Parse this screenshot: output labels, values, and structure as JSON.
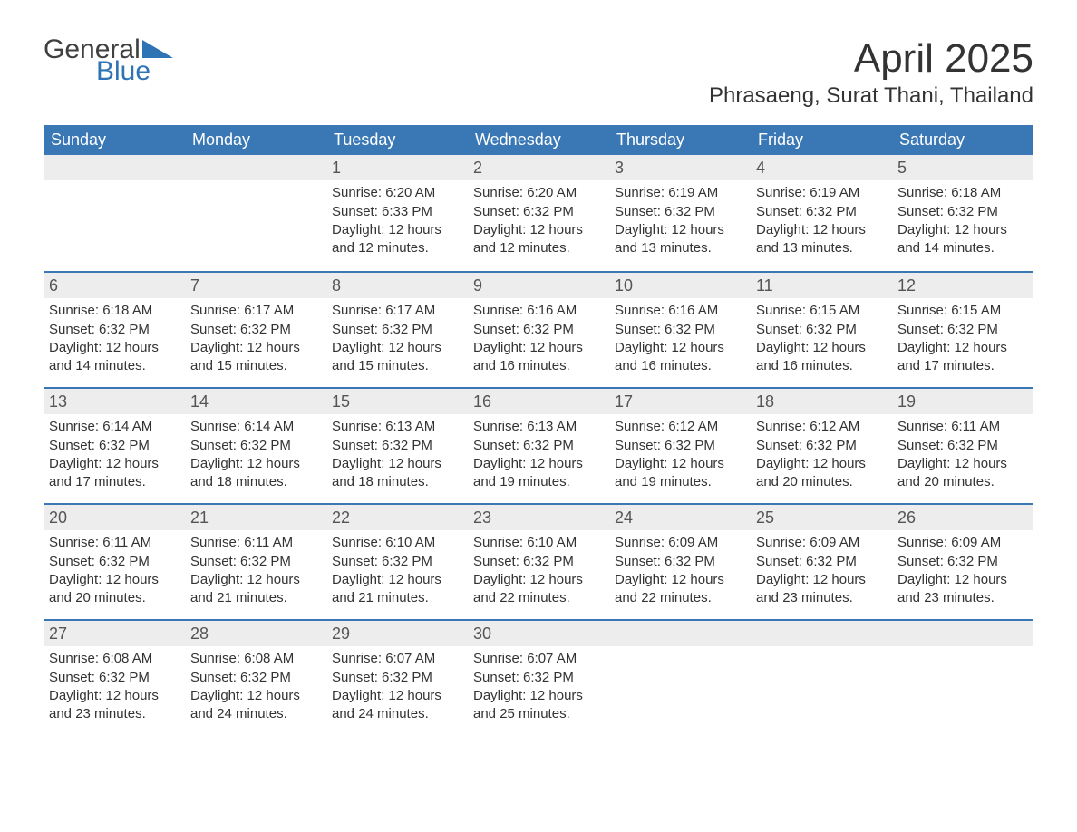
{
  "logo": {
    "word1": "General",
    "word2": "Blue",
    "tri_color": "#2e74b5"
  },
  "title": "April 2025",
  "location": "Phrasaeng, Surat Thani, Thailand",
  "colors": {
    "header_bg": "#3a78b5",
    "header_text": "#ffffff",
    "strip_bg": "#ededed",
    "week_border": "#3a78b5",
    "body_text": "#333333",
    "logo_blue": "#2e74b5"
  },
  "weekdays": [
    "Sunday",
    "Monday",
    "Tuesday",
    "Wednesday",
    "Thursday",
    "Friday",
    "Saturday"
  ],
  "weeks": [
    [
      {
        "empty": true
      },
      {
        "empty": true
      },
      {
        "day": "1",
        "sunrise": "Sunrise: 6:20 AM",
        "sunset": "Sunset: 6:33 PM",
        "dl1": "Daylight: 12 hours",
        "dl2": "and 12 minutes."
      },
      {
        "day": "2",
        "sunrise": "Sunrise: 6:20 AM",
        "sunset": "Sunset: 6:32 PM",
        "dl1": "Daylight: 12 hours",
        "dl2": "and 12 minutes."
      },
      {
        "day": "3",
        "sunrise": "Sunrise: 6:19 AM",
        "sunset": "Sunset: 6:32 PM",
        "dl1": "Daylight: 12 hours",
        "dl2": "and 13 minutes."
      },
      {
        "day": "4",
        "sunrise": "Sunrise: 6:19 AM",
        "sunset": "Sunset: 6:32 PM",
        "dl1": "Daylight: 12 hours",
        "dl2": "and 13 minutes."
      },
      {
        "day": "5",
        "sunrise": "Sunrise: 6:18 AM",
        "sunset": "Sunset: 6:32 PM",
        "dl1": "Daylight: 12 hours",
        "dl2": "and 14 minutes."
      }
    ],
    [
      {
        "day": "6",
        "sunrise": "Sunrise: 6:18 AM",
        "sunset": "Sunset: 6:32 PM",
        "dl1": "Daylight: 12 hours",
        "dl2": "and 14 minutes."
      },
      {
        "day": "7",
        "sunrise": "Sunrise: 6:17 AM",
        "sunset": "Sunset: 6:32 PM",
        "dl1": "Daylight: 12 hours",
        "dl2": "and 15 minutes."
      },
      {
        "day": "8",
        "sunrise": "Sunrise: 6:17 AM",
        "sunset": "Sunset: 6:32 PM",
        "dl1": "Daylight: 12 hours",
        "dl2": "and 15 minutes."
      },
      {
        "day": "9",
        "sunrise": "Sunrise: 6:16 AM",
        "sunset": "Sunset: 6:32 PM",
        "dl1": "Daylight: 12 hours",
        "dl2": "and 16 minutes."
      },
      {
        "day": "10",
        "sunrise": "Sunrise: 6:16 AM",
        "sunset": "Sunset: 6:32 PM",
        "dl1": "Daylight: 12 hours",
        "dl2": "and 16 minutes."
      },
      {
        "day": "11",
        "sunrise": "Sunrise: 6:15 AM",
        "sunset": "Sunset: 6:32 PM",
        "dl1": "Daylight: 12 hours",
        "dl2": "and 16 minutes."
      },
      {
        "day": "12",
        "sunrise": "Sunrise: 6:15 AM",
        "sunset": "Sunset: 6:32 PM",
        "dl1": "Daylight: 12 hours",
        "dl2": "and 17 minutes."
      }
    ],
    [
      {
        "day": "13",
        "sunrise": "Sunrise: 6:14 AM",
        "sunset": "Sunset: 6:32 PM",
        "dl1": "Daylight: 12 hours",
        "dl2": "and 17 minutes."
      },
      {
        "day": "14",
        "sunrise": "Sunrise: 6:14 AM",
        "sunset": "Sunset: 6:32 PM",
        "dl1": "Daylight: 12 hours",
        "dl2": "and 18 minutes."
      },
      {
        "day": "15",
        "sunrise": "Sunrise: 6:13 AM",
        "sunset": "Sunset: 6:32 PM",
        "dl1": "Daylight: 12 hours",
        "dl2": "and 18 minutes."
      },
      {
        "day": "16",
        "sunrise": "Sunrise: 6:13 AM",
        "sunset": "Sunset: 6:32 PM",
        "dl1": "Daylight: 12 hours",
        "dl2": "and 19 minutes."
      },
      {
        "day": "17",
        "sunrise": "Sunrise: 6:12 AM",
        "sunset": "Sunset: 6:32 PM",
        "dl1": "Daylight: 12 hours",
        "dl2": "and 19 minutes."
      },
      {
        "day": "18",
        "sunrise": "Sunrise: 6:12 AM",
        "sunset": "Sunset: 6:32 PM",
        "dl1": "Daylight: 12 hours",
        "dl2": "and 20 minutes."
      },
      {
        "day": "19",
        "sunrise": "Sunrise: 6:11 AM",
        "sunset": "Sunset: 6:32 PM",
        "dl1": "Daylight: 12 hours",
        "dl2": "and 20 minutes."
      }
    ],
    [
      {
        "day": "20",
        "sunrise": "Sunrise: 6:11 AM",
        "sunset": "Sunset: 6:32 PM",
        "dl1": "Daylight: 12 hours",
        "dl2": "and 20 minutes."
      },
      {
        "day": "21",
        "sunrise": "Sunrise: 6:11 AM",
        "sunset": "Sunset: 6:32 PM",
        "dl1": "Daylight: 12 hours",
        "dl2": "and 21 minutes."
      },
      {
        "day": "22",
        "sunrise": "Sunrise: 6:10 AM",
        "sunset": "Sunset: 6:32 PM",
        "dl1": "Daylight: 12 hours",
        "dl2": "and 21 minutes."
      },
      {
        "day": "23",
        "sunrise": "Sunrise: 6:10 AM",
        "sunset": "Sunset: 6:32 PM",
        "dl1": "Daylight: 12 hours",
        "dl2": "and 22 minutes."
      },
      {
        "day": "24",
        "sunrise": "Sunrise: 6:09 AM",
        "sunset": "Sunset: 6:32 PM",
        "dl1": "Daylight: 12 hours",
        "dl2": "and 22 minutes."
      },
      {
        "day": "25",
        "sunrise": "Sunrise: 6:09 AM",
        "sunset": "Sunset: 6:32 PM",
        "dl1": "Daylight: 12 hours",
        "dl2": "and 23 minutes."
      },
      {
        "day": "26",
        "sunrise": "Sunrise: 6:09 AM",
        "sunset": "Sunset: 6:32 PM",
        "dl1": "Daylight: 12 hours",
        "dl2": "and 23 minutes."
      }
    ],
    [
      {
        "day": "27",
        "sunrise": "Sunrise: 6:08 AM",
        "sunset": "Sunset: 6:32 PM",
        "dl1": "Daylight: 12 hours",
        "dl2": "and 23 minutes."
      },
      {
        "day": "28",
        "sunrise": "Sunrise: 6:08 AM",
        "sunset": "Sunset: 6:32 PM",
        "dl1": "Daylight: 12 hours",
        "dl2": "and 24 minutes."
      },
      {
        "day": "29",
        "sunrise": "Sunrise: 6:07 AM",
        "sunset": "Sunset: 6:32 PM",
        "dl1": "Daylight: 12 hours",
        "dl2": "and 24 minutes."
      },
      {
        "day": "30",
        "sunrise": "Sunrise: 6:07 AM",
        "sunset": "Sunset: 6:32 PM",
        "dl1": "Daylight: 12 hours",
        "dl2": "and 25 minutes."
      },
      {
        "empty": true
      },
      {
        "empty": true
      },
      {
        "empty": true
      }
    ]
  ]
}
